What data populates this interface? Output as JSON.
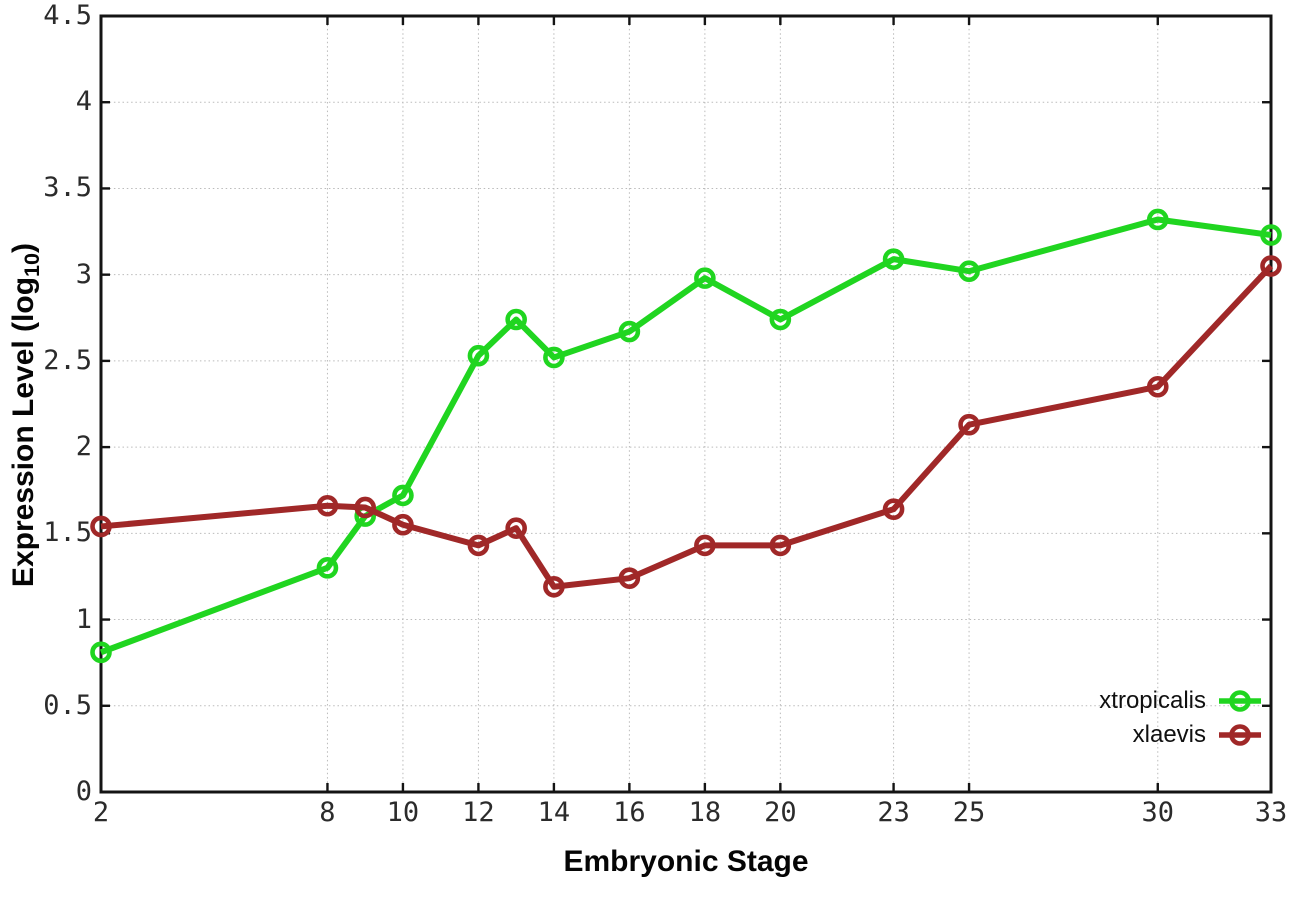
{
  "chart_data": {
    "type": "line",
    "title": "",
    "xlabel": "Embryonic Stage",
    "ylabel": "Expression Level (log10)",
    "ylabel_parts": {
      "pre": "Expression Level (log",
      "sub": "10",
      "post": ")"
    },
    "xlim": [
      2,
      33
    ],
    "ylim": [
      0,
      4.5
    ],
    "grid": true,
    "legend_position": "bottom-right",
    "x_ticks": [
      {
        "v": 2,
        "label": "2"
      },
      {
        "v": 8,
        "label": "8"
      },
      {
        "v": 10,
        "label": "10"
      },
      {
        "v": 12,
        "label": "12"
      },
      {
        "v": 14,
        "label": "14"
      },
      {
        "v": 16,
        "label": "16"
      },
      {
        "v": 18,
        "label": "18"
      },
      {
        "v": 20,
        "label": "20"
      },
      {
        "v": 23,
        "label": "23"
      },
      {
        "v": 25,
        "label": "25"
      },
      {
        "v": 30,
        "label": "30"
      },
      {
        "v": 33,
        "label": "33"
      }
    ],
    "y_ticks": [
      {
        "v": 0,
        "label": "0"
      },
      {
        "v": 0.5,
        "label": "0.5"
      },
      {
        "v": 1,
        "label": "1"
      },
      {
        "v": 1.5,
        "label": "1.5"
      },
      {
        "v": 2,
        "label": "2"
      },
      {
        "v": 2.5,
        "label": "2.5"
      },
      {
        "v": 3,
        "label": "3"
      },
      {
        "v": 3.5,
        "label": "3.5"
      },
      {
        "v": 4,
        "label": "4"
      },
      {
        "v": 4.5,
        "label": "4.5"
      }
    ],
    "x": [
      2,
      8,
      9,
      10,
      12,
      13,
      14,
      16,
      18,
      20,
      23,
      25,
      30,
      33
    ],
    "series": [
      {
        "name": "xtropicalis",
        "color": "#20d520",
        "values": [
          0.81,
          1.3,
          1.6,
          1.72,
          2.53,
          2.74,
          2.52,
          2.67,
          2.98,
          2.74,
          3.09,
          3.02,
          3.32,
          3.23
        ]
      },
      {
        "name": "xlaevis",
        "color": "#a02828",
        "values": [
          1.54,
          1.66,
          1.65,
          1.55,
          1.43,
          1.53,
          1.19,
          1.24,
          1.43,
          1.43,
          1.64,
          2.13,
          2.35,
          3.05
        ]
      }
    ],
    "colors": {
      "background": "#ffffff",
      "axis": "#141414",
      "grid": "#bbbbbb",
      "tick_text": "#2b2b2b",
      "label_text": "#050505"
    }
  }
}
